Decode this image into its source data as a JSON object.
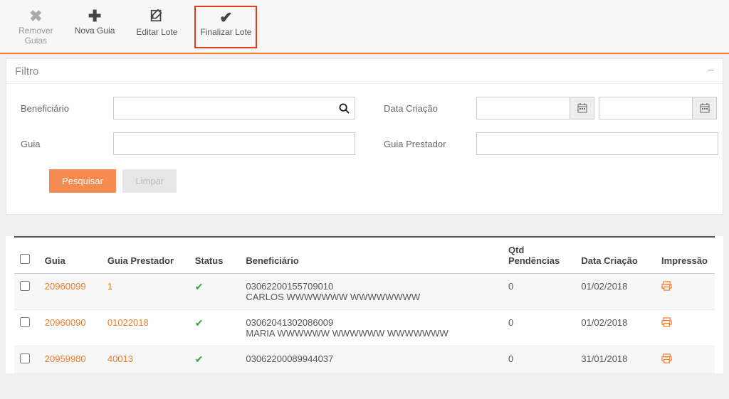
{
  "toolbar": {
    "remover": "Remover\nGuias",
    "nova": "Nova Guia",
    "editar": "Editar Lote",
    "finalizar": "Finalizar Lote"
  },
  "filter": {
    "title": "Filtro",
    "beneficiario_label": "Beneficiário",
    "guia_label": "Guia",
    "data_criacao_label": "Data Criação",
    "guia_prestador_label": "Guia Prestador",
    "pesquisar": "Pesquisar",
    "limpar": "Limpar"
  },
  "table": {
    "headers": {
      "guia": "Guia",
      "guia_prestador": "Guia Prestador",
      "status": "Status",
      "beneficiario": "Beneficiário",
      "qtd": "Qtd Pendências",
      "data": "Data Criação",
      "impressao": "Impressão"
    },
    "rows": [
      {
        "guia": "20960099",
        "gp": "1",
        "b1": "03062200155709010",
        "b2": "CARLOS WWWWWWW WWWWWWWW",
        "qtd": "0",
        "data": "01/02/2018"
      },
      {
        "guia": "20960090",
        "gp": "01022018",
        "b1": "03062041302086009",
        "b2": "MARIA WWWWWW WWWWWW WWWWWWW",
        "qtd": "0",
        "data": "01/02/2018"
      },
      {
        "guia": "20959980",
        "gp": "40013",
        "b1": "03062200089944037",
        "b2": "",
        "qtd": "0",
        "data": "31/01/2018"
      }
    ]
  }
}
